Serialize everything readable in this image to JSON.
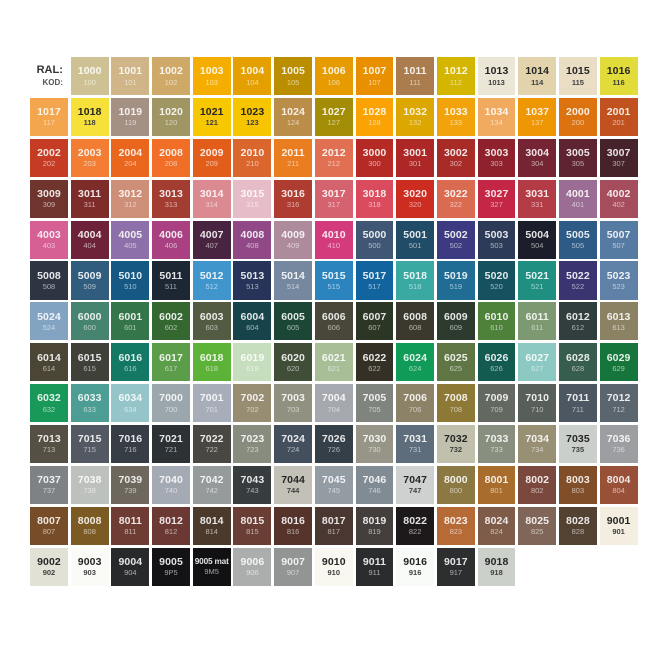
{
  "legend": {
    "ral": "RAL:",
    "kod": "KOD:"
  },
  "chart_data": {
    "type": "table",
    "title": "RAL color chart",
    "columns": [
      "RAL",
      "KOD",
      "color_hex",
      "text_tone"
    ],
    "rows": [
      [
        [
          "1000",
          "100",
          "#CEC193",
          "w"
        ],
        [
          "1001",
          "101",
          "#CFB588",
          "w"
        ],
        [
          "1002",
          "102",
          "#CFA968",
          "w"
        ],
        [
          "1003",
          "103",
          "#F5AE00",
          "w"
        ],
        [
          "1004",
          "104",
          "#E4A000",
          "w"
        ],
        [
          "1005",
          "105",
          "#BB8E00",
          "w"
        ],
        [
          "1006",
          "106",
          "#E69B00",
          "w"
        ],
        [
          "1007",
          "107",
          "#E89000",
          "w"
        ],
        [
          "1011",
          "111",
          "#AB7D4E",
          "w"
        ],
        [
          "1012",
          "112",
          "#D4B600",
          "w"
        ],
        [
          "1013",
          "1013",
          "#EBE6D5",
          "d"
        ],
        [
          "1014",
          "114",
          "#E2D3AC",
          "d"
        ],
        [
          "1015",
          "115",
          "#E9DEC4",
          "d"
        ],
        [
          "1016",
          "116",
          "#E2DC3A",
          "d"
        ]
      ],
      [
        [
          "1017",
          "117",
          "#F4A64F",
          "w"
        ],
        [
          "1018",
          "118",
          "#F6E03A",
          "d"
        ],
        [
          "1019",
          "119",
          "#A59084",
          "w"
        ],
        [
          "1020",
          "120",
          "#9F9664",
          "w"
        ],
        [
          "1021",
          "121",
          "#F7C700",
          "d"
        ],
        [
          "1023",
          "123",
          "#F7C400",
          "d"
        ],
        [
          "1024",
          "124",
          "#BA8D49",
          "w"
        ],
        [
          "1027",
          "127",
          "#A38D06",
          "w"
        ],
        [
          "1028",
          "128",
          "#FBA304",
          "w"
        ],
        [
          "1032",
          "132",
          "#DBA700",
          "w"
        ],
        [
          "1033",
          "133",
          "#F2A30C",
          "w"
        ],
        [
          "1034",
          "134",
          "#F0AB60",
          "w"
        ],
        [
          "1037",
          "137",
          "#EF9604",
          "w"
        ],
        [
          "2000",
          "200",
          "#DC7310",
          "w"
        ],
        [
          "2001",
          "201",
          "#C1521F",
          "w"
        ]
      ],
      [
        [
          "2002",
          "202",
          "#C53B24",
          "w"
        ],
        [
          "2003",
          "203",
          "#F37D33",
          "w"
        ],
        [
          "2004",
          "204",
          "#EA661D",
          "w"
        ],
        [
          "2008",
          "208",
          "#F06E26",
          "w"
        ],
        [
          "2009",
          "209",
          "#E35D1A",
          "w"
        ],
        [
          "2010",
          "210",
          "#DA662E",
          "w"
        ],
        [
          "2011",
          "211",
          "#E97D20",
          "w"
        ],
        [
          "2012",
          "212",
          "#E07051",
          "w"
        ],
        [
          "3000",
          "300",
          "#B62A26",
          "w"
        ],
        [
          "3001",
          "301",
          "#AC2725",
          "w"
        ],
        [
          "3002",
          "302",
          "#A92B28",
          "w"
        ],
        [
          "3003",
          "303",
          "#8E212C",
          "w"
        ],
        [
          "3004",
          "304",
          "#752434",
          "w"
        ],
        [
          "3005",
          "305",
          "#5F2431",
          "w"
        ],
        [
          "3007",
          "307",
          "#46222B",
          "w"
        ]
      ],
      [
        [
          "3009",
          "309",
          "#6F342D",
          "w"
        ],
        [
          "3011",
          "311",
          "#7E2C2A",
          "w"
        ],
        [
          "3012",
          "312",
          "#CD8F77",
          "w"
        ],
        [
          "3013",
          "313",
          "#A33D31",
          "w"
        ],
        [
          "3014",
          "314",
          "#DA8A90",
          "w"
        ],
        [
          "3015",
          "315",
          "#E6BCC9",
          "w"
        ],
        [
          "3016",
          "316",
          "#AF3C31",
          "w"
        ],
        [
          "3017",
          "317",
          "#D5636F",
          "w"
        ],
        [
          "3018",
          "318",
          "#DA4C5D",
          "w"
        ],
        [
          "3020",
          "320",
          "#CD2D21",
          "w"
        ],
        [
          "3022",
          "322",
          "#DB6B50",
          "w"
        ],
        [
          "3027",
          "327",
          "#C32745",
          "w"
        ],
        [
          "3031",
          "331",
          "#B33B45",
          "w"
        ],
        [
          "4001",
          "401",
          "#9B6D94",
          "w"
        ],
        [
          "4002",
          "402",
          "#A54C5D",
          "w"
        ]
      ],
      [
        [
          "4003",
          "403",
          "#D65F93",
          "w"
        ],
        [
          "4004",
          "404",
          "#6D2239",
          "w"
        ],
        [
          "4005",
          "405",
          "#8D70A9",
          "w"
        ],
        [
          "4006",
          "406",
          "#A84082",
          "w"
        ],
        [
          "4007",
          "407",
          "#482441",
          "w"
        ],
        [
          "4008",
          "408",
          "#904986",
          "w"
        ],
        [
          "4009",
          "409",
          "#AD8B9D",
          "w"
        ],
        [
          "4010",
          "410",
          "#D33B7D",
          "w"
        ],
        [
          "5000",
          "500",
          "#3F5774",
          "w"
        ],
        [
          "5001",
          "501",
          "#204C67",
          "w"
        ],
        [
          "5002",
          "502",
          "#3C3B81",
          "w"
        ],
        [
          "5003",
          "503",
          "#2C3B57",
          "w"
        ],
        [
          "5004",
          "504",
          "#1B1E2A",
          "w"
        ],
        [
          "5005",
          "505",
          "#2D5B86",
          "w"
        ],
        [
          "5007",
          "507",
          "#557BA3",
          "w"
        ]
      ],
      [
        [
          "5008",
          "508",
          "#2D3542",
          "w"
        ],
        [
          "5009",
          "509",
          "#305D7E",
          "w"
        ],
        [
          "5010",
          "510",
          "#155883",
          "w"
        ],
        [
          "5011",
          "511",
          "#1D2633",
          "w"
        ],
        [
          "5012",
          "512",
          "#4195CD",
          "w"
        ],
        [
          "5013",
          "513",
          "#273358",
          "w"
        ],
        [
          "5014",
          "514",
          "#7688A0",
          "w"
        ],
        [
          "5015",
          "515",
          "#2C84BF",
          "w"
        ],
        [
          "5017",
          "517",
          "#12649F",
          "w"
        ],
        [
          "5018",
          "518",
          "#39A9A1",
          "w"
        ],
        [
          "5019",
          "519",
          "#1F6C95",
          "w"
        ],
        [
          "5020",
          "520",
          "#15515E",
          "w"
        ],
        [
          "5021",
          "521",
          "#1E8F81",
          "w"
        ],
        [
          "5022",
          "522",
          "#3A3471",
          "w"
        ],
        [
          "5023",
          "523",
          "#5F80A7",
          "w"
        ]
      ],
      [
        [
          "5024",
          "524",
          "#83A3C3",
          "w"
        ],
        [
          "6000",
          "600",
          "#46846F",
          "w"
        ],
        [
          "6001",
          "601",
          "#34754A",
          "w"
        ],
        [
          "6002",
          "602",
          "#346830",
          "w"
        ],
        [
          "6003",
          "603",
          "#545B43",
          "w"
        ],
        [
          "6004",
          "604",
          "#17444A",
          "w"
        ],
        [
          "6005",
          "605",
          "#1C4736",
          "w"
        ],
        [
          "6006",
          "606",
          "#48473A",
          "w"
        ],
        [
          "6007",
          "607",
          "#2C3624",
          "w"
        ],
        [
          "6008",
          "608",
          "#3B392D",
          "w"
        ],
        [
          "6009",
          "609",
          "#2D3B2F",
          "w"
        ],
        [
          "6010",
          "610",
          "#4E813A",
          "w"
        ],
        [
          "6011",
          "611",
          "#7C9972",
          "w"
        ],
        [
          "6012",
          "612",
          "#323D3E",
          "w"
        ],
        [
          "6013",
          "613",
          "#8B8264",
          "w"
        ]
      ],
      [
        [
          "6014",
          "614",
          "#4B4535",
          "w"
        ],
        [
          "6015",
          "615",
          "#3F4038",
          "w"
        ],
        [
          "6016",
          "616",
          "#137964",
          "w"
        ],
        [
          "6017",
          "617",
          "#5C9D4A",
          "w"
        ],
        [
          "6018",
          "618",
          "#5CB338",
          "w"
        ],
        [
          "6019",
          "619",
          "#C6DEBD",
          "w"
        ],
        [
          "6020",
          "620",
          "#404E37",
          "w"
        ],
        [
          "6021",
          "621",
          "#A7BE97",
          "w"
        ],
        [
          "6022",
          "622",
          "#353025",
          "w"
        ],
        [
          "6024",
          "624",
          "#109B58",
          "w"
        ],
        [
          "6025",
          "625",
          "#5F7644",
          "w"
        ],
        [
          "6026",
          "626",
          "#135B51",
          "w"
        ],
        [
          "6027",
          "627",
          "#8CC9C3",
          "w"
        ],
        [
          "6028",
          "628",
          "#365D4D",
          "w"
        ],
        [
          "6029",
          "629",
          "#16753A",
          "w"
        ]
      ],
      [
        [
          "6032",
          "632",
          "#199959",
          "w"
        ],
        [
          "6033",
          "633",
          "#4C9D94",
          "w"
        ],
        [
          "6034",
          "634",
          "#95C5C8",
          "w"
        ],
        [
          "7000",
          "700",
          "#9CA6AD",
          "w"
        ],
        [
          "7001",
          "701",
          "#A7AEB9",
          "w"
        ],
        [
          "7002",
          "702",
          "#978D73",
          "w"
        ],
        [
          "7003",
          "703",
          "#909181",
          "w"
        ],
        [
          "7004",
          "704",
          "#A5A8AE",
          "w"
        ],
        [
          "7005",
          "705",
          "#80847E",
          "w"
        ],
        [
          "7006",
          "706",
          "#8B8267",
          "w"
        ],
        [
          "7008",
          "708",
          "#8D7835",
          "w"
        ],
        [
          "7009",
          "709",
          "#636961",
          "w"
        ],
        [
          "7010",
          "710",
          "#585E59",
          "w"
        ],
        [
          "7011",
          "711",
          "#4D5761",
          "w"
        ],
        [
          "7012",
          "712",
          "#5B656D",
          "w"
        ]
      ],
      [
        [
          "7013",
          "713",
          "#555043",
          "w"
        ],
        [
          "7015",
          "715",
          "#525963",
          "w"
        ],
        [
          "7016",
          "716",
          "#363D45",
          "w"
        ],
        [
          "7021",
          "721",
          "#2C3135",
          "w"
        ],
        [
          "7022",
          "722",
          "#494741",
          "w"
        ],
        [
          "7023",
          "723",
          "#888C7E",
          "w"
        ],
        [
          "7024",
          "724",
          "#434F5D",
          "w"
        ],
        [
          "7026",
          "726",
          "#343F47",
          "w"
        ],
        [
          "7030",
          "730",
          "#969587",
          "w"
        ],
        [
          "7031",
          "731",
          "#5D6D7B",
          "w"
        ],
        [
          "7032",
          "732",
          "#C0C0AD",
          "d"
        ],
        [
          "7033",
          "733",
          "#888F7F",
          "w"
        ],
        [
          "7034",
          "734",
          "#979075",
          "w"
        ],
        [
          "7035",
          "735",
          "#CBCFCB",
          "d"
        ],
        [
          "7036",
          "736",
          "#9C9EA1",
          "w"
        ]
      ],
      [
        [
          "7037",
          "737",
          "#7F8285",
          "w"
        ],
        [
          "7038",
          "738",
          "#BDC1BD",
          "w"
        ],
        [
          "7039",
          "739",
          "#6D675D",
          "w"
        ],
        [
          "7040",
          "740",
          "#A4AAB3",
          "w"
        ],
        [
          "7042",
          "742",
          "#959B9A",
          "w"
        ],
        [
          "7043",
          "743",
          "#373D3F",
          "w"
        ],
        [
          "7044",
          "744",
          "#C3C1B7",
          "d"
        ],
        [
          "7045",
          "745",
          "#939BA3",
          "w"
        ],
        [
          "7046",
          "746",
          "#808B94",
          "w"
        ],
        [
          "7047",
          "747",
          "#CFD1D1",
          "d"
        ],
        [
          "8000",
          "800",
          "#8B7842",
          "w"
        ],
        [
          "8001",
          "801",
          "#A86D2C",
          "w"
        ],
        [
          "8002",
          "802",
          "#7B483E",
          "w"
        ],
        [
          "8003",
          "803",
          "#804F2A",
          "w"
        ],
        [
          "8004",
          "804",
          "#995038",
          "w"
        ]
      ],
      [
        [
          "8007",
          "807",
          "#764D28",
          "w"
        ],
        [
          "8008",
          "808",
          "#7B5B23",
          "w"
        ],
        [
          "8011",
          "811",
          "#6F3C34",
          "w"
        ],
        [
          "8012",
          "812",
          "#6B3834",
          "w"
        ],
        [
          "8014",
          "814",
          "#4B3A2C",
          "w"
        ],
        [
          "8015",
          "815",
          "#6A3D35",
          "w"
        ],
        [
          "8016",
          "816",
          "#55332B",
          "w"
        ],
        [
          "8017",
          "817",
          "#4A3732",
          "w"
        ],
        [
          "8019",
          "819",
          "#443E3D",
          "w"
        ],
        [
          "8022",
          "822",
          "#1D191A",
          "w"
        ],
        [
          "8023",
          "823",
          "#B66B36",
          "w"
        ],
        [
          "8024",
          "824",
          "#7F5B49",
          "w"
        ],
        [
          "8025",
          "825",
          "#806658",
          "w"
        ],
        [
          "8028",
          "828",
          "#534132",
          "w"
        ],
        [
          "9001",
          "901",
          "#F3EEE0",
          "d"
        ]
      ],
      [
        [
          "9002",
          "902",
          "#E1E1D6",
          "d"
        ],
        [
          "9003",
          "903",
          "#FAFBF7",
          "d"
        ],
        [
          "9004",
          "904",
          "#27292B",
          "w"
        ],
        [
          "9005",
          "9P5",
          "#131315",
          "w"
        ],
        [
          "9005 mat",
          "9M5",
          "#111113",
          "w"
        ],
        [
          "9006",
          "906",
          "#ACADAD",
          "w"
        ],
        [
          "9007",
          "907",
          "#939494",
          "w"
        ],
        [
          "9010",
          "910",
          "#F8F8F1",
          "d"
        ],
        [
          "9011",
          "911",
          "#2A2C2E",
          "w"
        ],
        [
          "9016",
          "916",
          "#F8FAF7",
          "d"
        ],
        [
          "9017",
          "917",
          "#2C2E30",
          "w"
        ],
        [
          "9018",
          "918",
          "#CCD0CA",
          "d"
        ]
      ]
    ]
  }
}
